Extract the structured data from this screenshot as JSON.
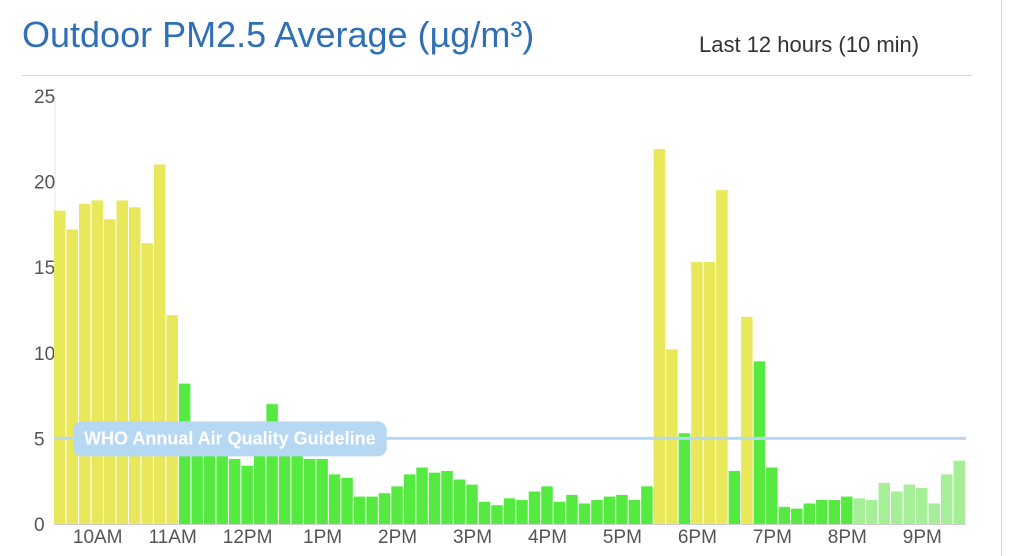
{
  "header": {
    "title": "Outdoor PM2.5 Average (µg/m³)",
    "range_label": "Last 12 hours (10 min)"
  },
  "colors": {
    "moderate": "#e8e85a",
    "good": "#55ea40",
    "good_recent": "#a6ef98",
    "guideline_line": "#b6d8f3",
    "guideline_label_bg": "#b6d8f3"
  },
  "chart_data": {
    "type": "bar",
    "ylim": [
      0,
      25
    ],
    "yticks": [
      0,
      5,
      10,
      15,
      20,
      25
    ],
    "ytick_labels": [
      "0",
      "5",
      "10",
      "15",
      "20",
      "25"
    ],
    "x_tick_labels": [
      "10AM",
      "11AM",
      "12PM",
      "1PM",
      "2PM",
      "3PM",
      "4PM",
      "5PM",
      "6PM",
      "7PM",
      "8PM",
      "9PM"
    ],
    "x_tick_bar_index": [
      3,
      9,
      15,
      21,
      27,
      33,
      39,
      45,
      51,
      57,
      63,
      69
    ],
    "values": [
      18.3,
      17.2,
      18.7,
      18.9,
      17.8,
      18.9,
      18.5,
      16.4,
      21.0,
      12.2,
      8.2,
      4.0,
      4.0,
      4.0,
      3.8,
      3.4,
      4.2,
      7.0,
      4.2,
      4.0,
      3.8,
      3.8,
      2.9,
      2.7,
      1.6,
      1.6,
      1.8,
      2.2,
      2.9,
      3.3,
      3.0,
      3.1,
      2.6,
      2.3,
      1.3,
      1.1,
      1.5,
      1.4,
      1.9,
      2.2,
      1.3,
      1.7,
      1.2,
      1.4,
      1.6,
      1.7,
      1.4,
      2.2,
      21.9,
      10.2,
      5.3,
      15.3,
      15.3,
      19.5,
      3.1,
      12.1,
      9.5,
      3.3,
      1.0,
      0.9,
      1.2,
      1.4,
      1.4,
      1.6,
      1.5,
      1.4,
      2.4,
      1.9,
      2.3,
      2.1,
      1.2,
      2.9,
      3.7
    ],
    "categories": [
      "moderate",
      "moderate",
      "moderate",
      "moderate",
      "moderate",
      "moderate",
      "moderate",
      "moderate",
      "moderate",
      "moderate",
      "good",
      "good",
      "good",
      "good",
      "good",
      "good",
      "good",
      "good",
      "good",
      "good",
      "good",
      "good",
      "good",
      "good",
      "good",
      "good",
      "good",
      "good",
      "good",
      "good",
      "good",
      "good",
      "good",
      "good",
      "good",
      "good",
      "good",
      "good",
      "good",
      "good",
      "good",
      "good",
      "good",
      "good",
      "good",
      "good",
      "good",
      "good",
      "moderate",
      "moderate",
      "good",
      "moderate",
      "moderate",
      "moderate",
      "good",
      "moderate",
      "good",
      "good",
      "good",
      "good",
      "good",
      "good",
      "good",
      "good",
      "good_recent",
      "good_recent",
      "good_recent",
      "good_recent",
      "good_recent",
      "good_recent",
      "good_recent",
      "good_recent",
      "good_recent"
    ],
    "guideline": {
      "value": 5,
      "label": "WHO Annual Air Quality Guideline"
    },
    "grid": false
  }
}
